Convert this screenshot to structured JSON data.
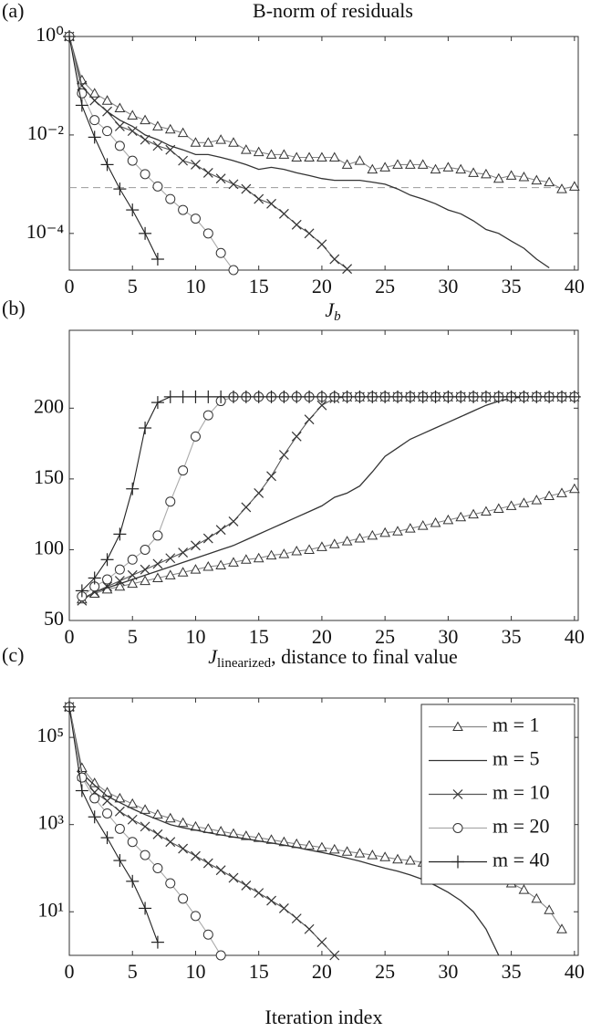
{
  "chart_data": [
    {
      "type": "line",
      "panel": "(a)",
      "title": "B-norm of residuals",
      "log_y": true,
      "xlim": [
        0,
        40.3
      ],
      "xticks": [
        0,
        5,
        10,
        15,
        20,
        25,
        30,
        35,
        40
      ],
      "ylim": [
        1.8e-05,
        1
      ],
      "yticks": [
        {
          "value": 1,
          "label": "10⁰"
        },
        {
          "value": 0.01,
          "label": "10⁻²"
        },
        {
          "value": 0.0001,
          "label": "10⁻⁴"
        }
      ],
      "reference_line": 0.00085,
      "x": [
        0,
        1,
        2,
        3,
        4,
        5,
        6,
        7,
        8,
        9,
        10,
        11,
        12,
        13,
        14,
        15,
        16,
        17,
        18,
        19,
        20,
        21,
        22,
        23,
        24,
        25,
        26,
        27,
        28,
        29,
        30,
        31,
        32,
        33,
        34,
        35,
        36,
        37,
        38,
        39,
        40
      ],
      "series": [
        {
          "color": "#888888",
          "marker": "triangle",
          "values": [
            1,
            0.13,
            0.07,
            0.05,
            0.035,
            0.025,
            0.02,
            0.015,
            0.013,
            0.011,
            0.007,
            0.007,
            0.008,
            0.007,
            0.005,
            0.0045,
            0.004,
            0.004,
            0.0035,
            0.0035,
            0.0035,
            0.0035,
            0.0025,
            0.003,
            0.002,
            0.0022,
            0.0025,
            0.0025,
            0.0025,
            0.002,
            0.0022,
            0.002,
            0.0017,
            0.0016,
            0.0013,
            0.0015,
            0.0014,
            0.0012,
            0.0011,
            0.0008,
            0.0009
          ]
        },
        {
          "color": "#333333",
          "marker": "none",
          "values": [
            1,
            0.1,
            0.05,
            0.03,
            0.02,
            0.015,
            0.01,
            0.008,
            0.006,
            0.005,
            0.004,
            0.004,
            0.0035,
            0.003,
            0.0025,
            0.002,
            0.0022,
            0.002,
            0.0017,
            0.0015,
            0.0013,
            0.0012,
            0.0012,
            0.0012,
            0.0011,
            0.001,
            0.0008,
            0.0006,
            0.0005,
            0.0004,
            0.0003,
            0.00025,
            0.00018,
            0.00012,
            0.0001,
            7e-05,
            5e-05,
            3e-05,
            2e-05,
            null,
            null
          ]
        },
        {
          "color": "#555555",
          "marker": "cross",
          "values": [
            1,
            0.1,
            0.05,
            0.03,
            0.015,
            0.012,
            0.008,
            0.006,
            0.005,
            0.003,
            0.0025,
            0.0017,
            0.0013,
            0.001,
            0.0008,
            0.0005,
            0.0004,
            0.00025,
            0.00015,
            0.0001,
            6e-05,
            3e-05,
            1.9e-05,
            null,
            null,
            null,
            null,
            null,
            null,
            null,
            null,
            null,
            null,
            null,
            null,
            null,
            null,
            null,
            null,
            null,
            null
          ]
        },
        {
          "color": "#aaaaaa",
          "marker": "circle",
          "values": [
            1,
            0.07,
            0.02,
            0.012,
            0.006,
            0.003,
            0.0016,
            0.0009,
            0.0005,
            0.0003,
            0.0002,
            0.0001,
            4e-05,
            1.8e-05,
            null,
            null,
            null,
            null,
            null,
            null,
            null,
            null,
            null,
            null,
            null,
            null,
            null,
            null,
            null,
            null,
            null,
            null,
            null,
            null,
            null,
            null,
            null,
            null,
            null,
            null,
            null
          ]
        },
        {
          "color": "#222222",
          "marker": "plus",
          "values": [
            1,
            0.04,
            0.009,
            0.0025,
            0.0008,
            0.0003,
            0.0001,
            3e-05,
            null,
            null,
            null,
            null,
            null,
            null,
            null,
            null,
            null,
            null,
            null,
            null,
            null,
            null,
            null,
            null,
            null,
            null,
            null,
            null,
            null,
            null,
            null,
            null,
            null,
            null,
            null,
            null,
            null,
            null,
            null,
            null,
            null
          ]
        }
      ]
    },
    {
      "type": "line",
      "panel": "(b)",
      "title": {
        "symbol": "J",
        "subscript": "b"
      },
      "log_y": false,
      "xlim": [
        0,
        40.3
      ],
      "xticks": [
        0,
        5,
        10,
        15,
        20,
        25,
        30,
        35,
        40
      ],
      "ylim": [
        50,
        255
      ],
      "yticks": [
        50,
        100,
        150,
        200
      ],
      "x": [
        1,
        2,
        3,
        4,
        5,
        6,
        7,
        8,
        9,
        10,
        11,
        12,
        13,
        14,
        15,
        16,
        17,
        18,
        19,
        20,
        21,
        22,
        23,
        24,
        25,
        26,
        27,
        28,
        29,
        30,
        31,
        32,
        33,
        34,
        35,
        36,
        37,
        38,
        39,
        40
      ],
      "series": [
        {
          "color": "#888888",
          "marker": "triangle",
          "values": [
            65,
            69,
            72,
            74,
            76,
            78,
            80,
            82,
            84,
            86,
            88,
            89,
            91,
            93,
            94,
            96,
            97,
            99,
            100,
            102,
            104,
            106,
            108,
            110,
            112,
            113,
            115,
            117,
            119,
            121,
            123,
            125,
            127,
            129,
            131,
            133,
            135,
            138,
            140,
            143
          ]
        },
        {
          "color": "#333333",
          "marker": "none",
          "values": [
            65,
            70,
            73,
            76,
            79,
            82,
            85,
            88,
            91,
            94,
            97,
            100,
            103,
            107,
            111,
            115,
            119,
            123,
            127,
            131,
            137,
            140,
            145,
            155,
            166,
            172,
            178,
            182,
            186,
            190,
            194,
            198,
            202,
            205,
            207,
            208,
            208,
            208,
            208,
            208
          ]
        },
        {
          "color": "#555555",
          "marker": "cross",
          "values": [
            64,
            70,
            74,
            78,
            82,
            86,
            90,
            94,
            98,
            103,
            108,
            114,
            120,
            130,
            140,
            152,
            167,
            180,
            192,
            202,
            207,
            208,
            208,
            208,
            208,
            208,
            208,
            208,
            208,
            208,
            208,
            208,
            208,
            208,
            208,
            208,
            208,
            208,
            208,
            208
          ]
        },
        {
          "color": "#aaaaaa",
          "marker": "circle",
          "values": [
            67,
            74,
            79,
            86,
            93,
            100,
            110,
            134,
            156,
            180,
            195,
            205,
            208,
            208,
            208,
            208,
            208,
            208,
            208,
            208,
            208,
            208,
            208,
            208,
            208,
            208,
            208,
            208,
            208,
            208,
            208,
            208,
            208,
            208,
            208,
            208,
            208,
            208,
            208,
            208
          ]
        },
        {
          "color": "#222222",
          "marker": "plus",
          "values": [
            71,
            80,
            93,
            111,
            143,
            186,
            204,
            208,
            208,
            208,
            208,
            208,
            208,
            208,
            208,
            208,
            208,
            208,
            208,
            208,
            208,
            208,
            208,
            208,
            208,
            208,
            208,
            208,
            208,
            208,
            208,
            208,
            208,
            208,
            208,
            208,
            208,
            208,
            208,
            208
          ]
        }
      ]
    },
    {
      "type": "line",
      "panel": "(c)",
      "title": {
        "symbol": "J",
        "subscript": "linearized",
        "text": ", distance to final value"
      },
      "log_y": true,
      "xlabel": "Iteration index",
      "legend": "upper right",
      "xlim": [
        0,
        40.3
      ],
      "xticks": [
        0,
        5,
        10,
        15,
        20,
        25,
        30,
        35,
        40
      ],
      "ylim": [
        1,
        800000
      ],
      "yticks": [
        {
          "value": 100000,
          "label": "10⁵"
        },
        {
          "value": 1000,
          "label": "10³"
        },
        {
          "value": 10,
          "label": "10¹"
        }
      ],
      "x": [
        0,
        1,
        2,
        3,
        4,
        5,
        6,
        7,
        8,
        9,
        10,
        11,
        12,
        13,
        14,
        15,
        16,
        17,
        18,
        19,
        20,
        21,
        22,
        23,
        24,
        25,
        26,
        27,
        28,
        29,
        30,
        31,
        32,
        33,
        34,
        35,
        36,
        37,
        38,
        39,
        40
      ],
      "series": [
        {
          "name": "m = 1",
          "color": "#888888",
          "marker": "triangle",
          "values": [
            500000,
            20000,
            9000,
            5500,
            4000,
            3000,
            2200,
            1700,
            1400,
            1100,
            900,
            800,
            700,
            620,
            550,
            500,
            450,
            400,
            360,
            330,
            300,
            270,
            240,
            220,
            200,
            180,
            160,
            150,
            135,
            120,
            110,
            95,
            85,
            72,
            60,
            45,
            32,
            20,
            11,
            4,
            null
          ]
        },
        {
          "name": "m = 5",
          "color": "#333333",
          "marker": "none",
          "values": [
            500000,
            15000,
            8000,
            4500,
            3200,
            2300,
            1700,
            1300,
            1000,
            850,
            750,
            650,
            580,
            520,
            470,
            420,
            380,
            340,
            300,
            260,
            230,
            200,
            170,
            145,
            120,
            100,
            85,
            70,
            55,
            40,
            28,
            18,
            10,
            4,
            1,
            null,
            null,
            null,
            null,
            null,
            null
          ]
        },
        {
          "name": "m = 10",
          "color": "#555555",
          "marker": "cross",
          "values": [
            500000,
            13000,
            5500,
            3500,
            2000,
            1300,
            900,
            600,
            400,
            280,
            190,
            130,
            90,
            60,
            40,
            27,
            18,
            12,
            7,
            4,
            2,
            1,
            null,
            null,
            null,
            null,
            null,
            null,
            null,
            null,
            null,
            null,
            null,
            null,
            null,
            null,
            null,
            null,
            null,
            null,
            null
          ]
        },
        {
          "name": "m = 20",
          "color": "#aaaaaa",
          "marker": "circle",
          "values": [
            500000,
            12000,
            4000,
            1800,
            800,
            400,
            200,
            100,
            45,
            20,
            8,
            3,
            1,
            null,
            null,
            null,
            null,
            null,
            null,
            null,
            null,
            null,
            null,
            null,
            null,
            null,
            null,
            null,
            null,
            null,
            null,
            null,
            null,
            null,
            null,
            null,
            null,
            null,
            null,
            null,
            null
          ]
        },
        {
          "name": "m = 40",
          "color": "#222222",
          "marker": "plus",
          "values": [
            500000,
            6000,
            1500,
            500,
            150,
            50,
            12,
            2,
            null,
            null,
            null,
            null,
            null,
            null,
            null,
            null,
            null,
            null,
            null,
            null,
            null,
            null,
            null,
            null,
            null,
            null,
            null,
            null,
            null,
            null,
            null,
            null,
            null,
            null,
            null,
            null,
            null,
            null,
            null,
            null,
            null
          ]
        }
      ]
    }
  ]
}
